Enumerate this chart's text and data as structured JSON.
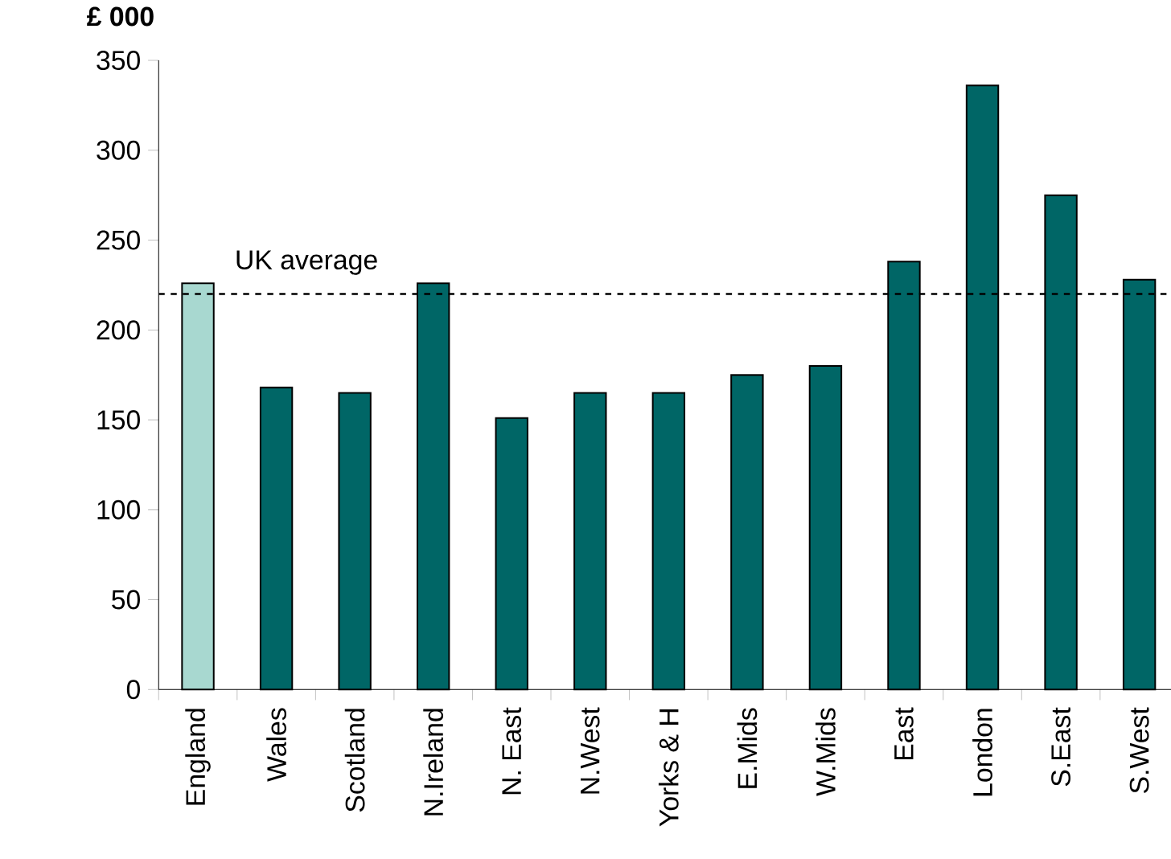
{
  "chart_data": {
    "type": "bar",
    "ylabel": "£ 000",
    "categories": [
      "England",
      "Wales",
      "Scotland",
      "N.Ireland",
      "N. East",
      "N.West",
      "Yorks & H",
      "E.Mids",
      "W.Mids",
      "East",
      "London",
      "S.East",
      "S.West"
    ],
    "values": [
      226,
      168,
      165,
      226,
      151,
      165,
      165,
      175,
      180,
      238,
      336,
      275,
      228
    ],
    "colors": [
      "#a8d8d0",
      "#006666",
      "#006666",
      "#006666",
      "#006666",
      "#006666",
      "#006666",
      "#006666",
      "#006666",
      "#006666",
      "#006666",
      "#006666",
      "#006666"
    ],
    "ylim": [
      0,
      350
    ],
    "yticks": [
      0,
      50,
      100,
      150,
      200,
      250,
      300,
      350
    ],
    "ref_lines": [
      {
        "axis": "y",
        "value": 220,
        "label": "UK average",
        "line_style": "dashed",
        "color": "#000000"
      }
    ]
  }
}
